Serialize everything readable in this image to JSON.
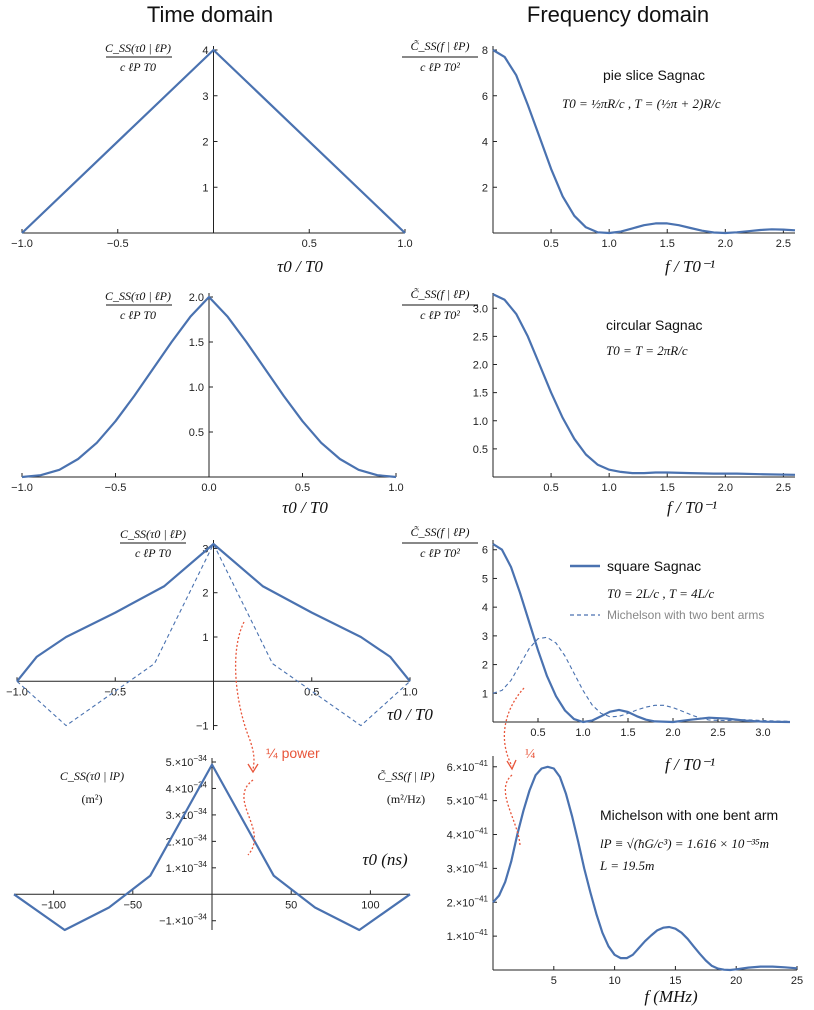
{
  "titles": {
    "left": "Time domain",
    "right": "Frequency domain"
  },
  "colors": {
    "curve": "#4a72b0",
    "dashed": "#4a72b0",
    "arrow": "#e8553a"
  },
  "labels": {
    "time_ylabel_num": "C_SS(τ0 | ℓP)",
    "time_ylabel_den": "c ℓP T0",
    "freq_ylabel_num": "C̃_SS(f | ℓP)",
    "freq_ylabel_den": "c ℓP T0²",
    "time_xlabel": "τ0 / T0",
    "freq_xlabel": "f / T0⁻¹",
    "p4_ylabel_num": "C_SS(τ0 | lP)",
    "p4_ylabel_den": "(m²)",
    "p8_ylabel_num": "C̃_SS(f | lP)",
    "p8_ylabel_den": "(m²/Hz)",
    "p4_xlabel": "τ0 (ns)",
    "p8_xlabel": "f (MHz)"
  },
  "annotations": {
    "pie_title": "pie slice Sagnac",
    "pie_formula": "T0 = ½πR/c ,  T = (½π + 2)R/c",
    "circ_title": "circular Sagnac",
    "circ_formula": "T0 = T = 2πR/c",
    "square_title": "square Sagnac",
    "square_formula": "T0 = 2L/c ,  T = 4L/c",
    "michelson2": "Michelson with two bent arms",
    "michelson1_title": "Michelson with one bent arm",
    "lp_formula": "lP ≡ √(ħG/c³) = 1.616 × 10⁻³⁵m",
    "L_formula": "L = 19.5m",
    "quarter_power": "¼ power",
    "quarter": "¼"
  },
  "chart_data": [
    {
      "id": "pie-time",
      "type": "line",
      "xlim": [
        -1.0,
        1.0
      ],
      "ylim": [
        0,
        4
      ],
      "xticks": [
        "-1.0",
        "-0.5",
        "0.5",
        "1.0"
      ],
      "yticks": [
        "1",
        "2",
        "3",
        "4"
      ],
      "series": [
        {
          "x": [
            -1.0,
            0,
            1.0
          ],
          "y": [
            0,
            4,
            0
          ]
        }
      ]
    },
    {
      "id": "pie-freq",
      "type": "line",
      "xlim": [
        0,
        2.6
      ],
      "ylim": [
        0,
        8
      ],
      "xticks": [
        "0.5",
        "1.0",
        "1.5",
        "2.0",
        "2.5"
      ],
      "yticks": [
        "2",
        "4",
        "6",
        "8"
      ],
      "series": [
        {
          "x": [
            0,
            0.1,
            0.2,
            0.3,
            0.4,
            0.5,
            0.6,
            0.7,
            0.8,
            0.9,
            1.0,
            1.1,
            1.2,
            1.3,
            1.4,
            1.5,
            1.6,
            1.7,
            1.8,
            1.9,
            2.0,
            2.1,
            2.2,
            2.3,
            2.4,
            2.5,
            2.6
          ],
          "y": [
            8.0,
            7.7,
            6.9,
            5.6,
            4.2,
            2.8,
            1.6,
            0.75,
            0.25,
            0.03,
            0.0,
            0.06,
            0.2,
            0.34,
            0.42,
            0.42,
            0.34,
            0.22,
            0.1,
            0.02,
            0.0,
            0.03,
            0.08,
            0.13,
            0.16,
            0.15,
            0.12
          ]
        }
      ]
    },
    {
      "id": "circ-time",
      "type": "line",
      "xlim": [
        -1.0,
        1.0
      ],
      "ylim": [
        0,
        2.0
      ],
      "xticks": [
        "-1.0",
        "-0.5",
        "0.0",
        "0.5",
        "1.0"
      ],
      "yticks": [
        "0.5",
        "1.0",
        "1.5",
        "2.0"
      ],
      "series": [
        {
          "x": [
            -1.0,
            -0.9,
            -0.8,
            -0.7,
            -0.6,
            -0.5,
            -0.4,
            -0.3,
            -0.2,
            -0.1,
            0,
            0.1,
            0.2,
            0.3,
            0.4,
            0.5,
            0.6,
            0.7,
            0.8,
            0.9,
            1.0
          ],
          "y": [
            0.0,
            0.02,
            0.08,
            0.2,
            0.38,
            0.62,
            0.9,
            1.2,
            1.5,
            1.78,
            2.0,
            1.78,
            1.5,
            1.2,
            0.9,
            0.62,
            0.38,
            0.2,
            0.08,
            0.02,
            0.0
          ]
        }
      ]
    },
    {
      "id": "circ-freq",
      "type": "line",
      "xlim": [
        0,
        2.6
      ],
      "ylim": [
        0,
        3.2
      ],
      "xticks": [
        "0.5",
        "1.0",
        "1.5",
        "2.0",
        "2.5"
      ],
      "yticks": [
        "0.5",
        "1.0",
        "1.5",
        "2.0",
        "2.5",
        "3.0"
      ],
      "series": [
        {
          "x": [
            0,
            0.1,
            0.2,
            0.3,
            0.4,
            0.5,
            0.6,
            0.7,
            0.8,
            0.9,
            1.0,
            1.1,
            1.2,
            1.3,
            1.4,
            1.5,
            1.7,
            1.9,
            2.1,
            2.3,
            2.6
          ],
          "y": [
            3.25,
            3.15,
            2.9,
            2.5,
            2.0,
            1.5,
            1.05,
            0.68,
            0.4,
            0.22,
            0.13,
            0.09,
            0.07,
            0.07,
            0.08,
            0.08,
            0.07,
            0.06,
            0.06,
            0.05,
            0.04
          ]
        }
      ]
    },
    {
      "id": "square-time",
      "type": "line",
      "xlim": [
        -1.0,
        1.0
      ],
      "ylim": [
        -1.1,
        3.1
      ],
      "xticks": [
        "-1.0",
        "-0.5",
        "0.5",
        "1.0"
      ],
      "yticks": [
        "-1",
        "1",
        "2",
        "3"
      ],
      "series": [
        {
          "name": "square Sagnac",
          "style": "solid",
          "x": [
            -1.0,
            -0.9,
            -0.75,
            -0.5,
            -0.25,
            0,
            0.25,
            0.5,
            0.75,
            0.9,
            1.0
          ],
          "y": [
            0,
            0.55,
            1.0,
            1.55,
            2.15,
            3.1,
            2.15,
            1.55,
            1.0,
            0.55,
            0
          ]
        },
        {
          "name": "Michelson with two bent arms",
          "style": "dashed",
          "x": [
            -1.0,
            -0.75,
            -0.3,
            0,
            0.3,
            0.75,
            1.0
          ],
          "y": [
            0,
            -1.0,
            0.4,
            3.1,
            0.4,
            -1.0,
            0
          ]
        }
      ]
    },
    {
      "id": "square-freq",
      "type": "line",
      "xlim": [
        0,
        3.3
      ],
      "ylim": [
        0,
        6.2
      ],
      "xticks": [
        "0.5",
        "1.0",
        "1.5",
        "2.0",
        "2.5",
        "3.0"
      ],
      "yticks": [
        "1",
        "2",
        "3",
        "4",
        "5",
        "6"
      ],
      "series": [
        {
          "name": "square Sagnac",
          "style": "solid",
          "x": [
            0,
            0.1,
            0.2,
            0.3,
            0.4,
            0.5,
            0.6,
            0.7,
            0.8,
            0.9,
            1.0,
            1.1,
            1.2,
            1.3,
            1.4,
            1.5,
            1.6,
            1.7,
            1.8,
            2.0,
            2.2,
            2.4,
            2.6,
            2.8,
            3.0,
            3.3
          ],
          "y": [
            6.2,
            6.0,
            5.4,
            4.5,
            3.5,
            2.5,
            1.6,
            0.9,
            0.4,
            0.1,
            0.0,
            0.05,
            0.2,
            0.36,
            0.42,
            0.35,
            0.2,
            0.08,
            0.02,
            0.0,
            0.08,
            0.15,
            0.12,
            0.05,
            0.01,
            0.0
          ]
        },
        {
          "name": "Michelson with two bent arms",
          "style": "dashed",
          "x": [
            0,
            0.1,
            0.2,
            0.3,
            0.4,
            0.5,
            0.6,
            0.7,
            0.8,
            0.9,
            1.0,
            1.1,
            1.2,
            1.3,
            1.4,
            1.5,
            1.6,
            1.7,
            1.8,
            1.9,
            2.0,
            2.1,
            2.2,
            2.3,
            2.4,
            2.6,
            2.8,
            3.0,
            3.3
          ],
          "y": [
            1.0,
            1.1,
            1.45,
            2.0,
            2.55,
            2.9,
            2.95,
            2.75,
            2.3,
            1.7,
            1.1,
            0.6,
            0.3,
            0.18,
            0.2,
            0.3,
            0.42,
            0.52,
            0.58,
            0.58,
            0.5,
            0.38,
            0.25,
            0.14,
            0.07,
            0.05,
            0.08,
            0.05,
            0.02
          ]
        }
      ]
    },
    {
      "id": "michelson-time",
      "type": "line",
      "xlim": [
        -125,
        125
      ],
      "ylim": [
        -1.35e-34,
        5e-34
      ],
      "xticks": [
        "-100",
        "-50",
        "50",
        "100"
      ],
      "yticks": [
        "-1.×10^-34",
        "1.×10^-34",
        "2.×10^-34",
        "3.×10^-34",
        "4.×10^-34",
        "5.×10^-34"
      ],
      "series": [
        {
          "x": [
            -125,
            -93,
            -65,
            -39,
            0,
            39,
            65,
            93,
            125
          ],
          "y": [
            0,
            -1.35e-34,
            -5e-35,
            7e-35,
            4.9e-34,
            7e-35,
            -5e-35,
            -1.35e-34,
            0
          ]
        }
      ]
    },
    {
      "id": "michelson-freq",
      "type": "line",
      "xlim": [
        0,
        25
      ],
      "ylim": [
        0,
        6.2e-41
      ],
      "xticks": [
        "5",
        "10",
        "15",
        "20",
        "25"
      ],
      "yticks": [
        "1.×10^-41",
        "2.×10^-41",
        "3.×10^-41",
        "4.×10^-41",
        "5.×10^-41",
        "6.×10^-41"
      ],
      "series": [
        {
          "x": [
            0,
            0.5,
            1,
            1.5,
            2,
            2.5,
            3,
            3.5,
            4,
            4.5,
            5,
            5.5,
            6,
            6.5,
            7,
            7.5,
            8,
            8.5,
            9,
            9.5,
            10,
            10.5,
            11,
            11.5,
            12,
            12.5,
            13,
            13.5,
            14,
            14.5,
            15,
            15.5,
            16,
            16.5,
            17,
            17.5,
            18,
            18.5,
            19,
            19.5,
            20,
            21,
            22,
            23,
            24,
            25
          ],
          "y": [
            2e-41,
            2.2e-41,
            2.6e-41,
            3.2e-41,
            4e-41,
            4.7e-41,
            5.3e-41,
            5.75e-41,
            5.95e-41,
            6e-41,
            5.95e-41,
            5.7e-41,
            5.2e-41,
            4.55e-41,
            3.8e-41,
            3e-41,
            2.3e-41,
            1.65e-41,
            1.1e-41,
            7e-42,
            4.5e-42,
            3.5e-42,
            3.5e-42,
            4.5e-42,
            6.5e-42,
            8.5e-42,
            1.02e-41,
            1.17e-41,
            1.25e-41,
            1.27e-41,
            1.22e-41,
            1.1e-41,
            9.2e-42,
            7e-42,
            4.8e-42,
            2.8e-42,
            1.2e-42,
            4e-43,
            1e-43,
            0.0,
            2e-43,
            7e-43,
            1e-42,
            1e-42,
            8e-43,
            5e-43
          ]
        }
      ]
    }
  ]
}
